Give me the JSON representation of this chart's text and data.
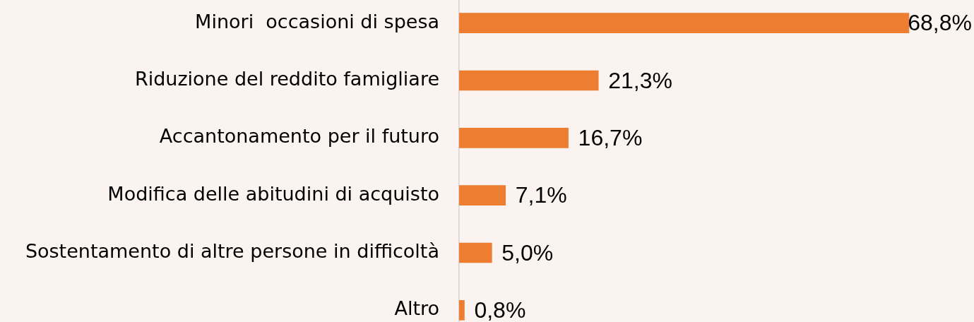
{
  "chart_data": {
    "type": "bar",
    "orientation": "horizontal",
    "categories": [
      "Minori  occasioni di spesa",
      "Riduzione del reddito famigliare",
      "Accantonamento per il futuro",
      "Modifica delle abitudini di acquisto",
      "Sostentamento di altre persone in difficoltà",
      "Altro"
    ],
    "values": [
      68.8,
      21.3,
      16.7,
      7.1,
      5.0,
      0.8
    ],
    "color": "#ed7d31",
    "value_labels": [
      "68,8%",
      "21,3%",
      "16,7%",
      "7,1%",
      "5,0%",
      "0,8%"
    ],
    "tick_labels": "y",
    "grid": false,
    "legend": false
  }
}
